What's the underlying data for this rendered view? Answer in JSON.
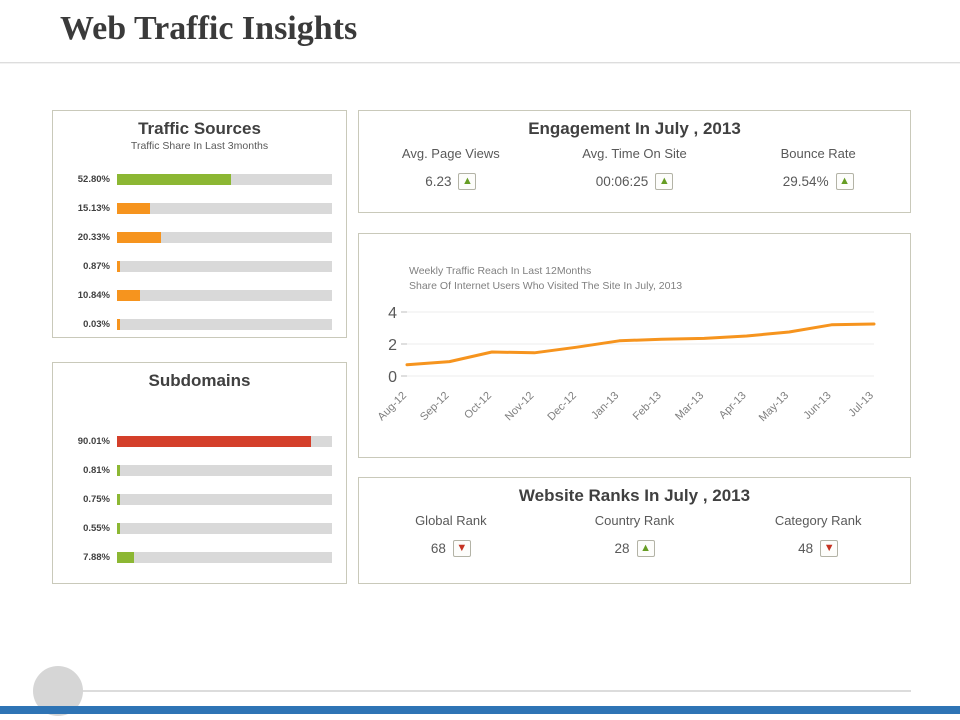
{
  "page": {
    "title": "Web Traffic Insights"
  },
  "colors": {
    "green": "#8cb733",
    "orange": "#f6941e",
    "red": "#d43f2a",
    "track_gray": "#d9d9d9",
    "up_arrow": "#669d23",
    "down_arrow": "#c53322",
    "footer_bar": "#2e74b5"
  },
  "panels": {
    "traffic_sources": {
      "title": "Traffic Sources",
      "subtitle": "Traffic Share In Last 3months"
    },
    "subdomains": {
      "title": "Subdomains"
    },
    "engagement": {
      "title": "Engagement In July , 2013",
      "metrics": [
        {
          "label": "Avg. Page Views",
          "value": "6.23",
          "trend": "up"
        },
        {
          "label": "Avg. Time On Site",
          "value": "00:06:25",
          "trend": "up"
        },
        {
          "label": "Bounce Rate",
          "value": "29.54%",
          "trend": "up"
        }
      ]
    },
    "weekly_traffic": {
      "note_line1": "Weekly Traffic Reach In Last 12Months",
      "note_line2": "Share Of Internet Users Who Visited The Site In July, 2013"
    },
    "website_ranks": {
      "title": "Website Ranks In July , 2013",
      "metrics": [
        {
          "label": "Global Rank",
          "value": "68",
          "trend": "down"
        },
        {
          "label": "Country Rank",
          "value": "28",
          "trend": "up"
        },
        {
          "label": "Category Rank",
          "value": "48",
          "trend": "down"
        }
      ]
    }
  },
  "chart_data": [
    {
      "id": "traffic-sources",
      "type": "bar",
      "orientation": "horizontal",
      "title": "Traffic Sources",
      "subtitle": "Traffic Share In Last 3months",
      "categories": [
        "52.80%",
        "15.13%",
        "20.33%",
        "0.87%",
        "10.84%",
        "0.03%"
      ],
      "values": [
        52.8,
        15.13,
        20.33,
        0.87,
        10.84,
        0.03
      ],
      "bar_colors": [
        "#8cb733",
        "#f6941e",
        "#f6941e",
        "#f6941e",
        "#f6941e",
        "#f6941e"
      ],
      "track_color": "#d9d9d9",
      "xlim": [
        0,
        100
      ]
    },
    {
      "id": "subdomains",
      "type": "bar",
      "orientation": "horizontal",
      "title": "Subdomains",
      "categories": [
        "90.01%",
        "0.81%",
        "0.75%",
        "0.55%",
        "7.88%"
      ],
      "values": [
        90.01,
        0.81,
        0.75,
        0.55,
        7.88
      ],
      "bar_colors": [
        "#d43f2a",
        "#8cb733",
        "#8cb733",
        "#8cb733",
        "#8cb733"
      ],
      "track_color": "#d9d9d9",
      "xlim": [
        0,
        100
      ]
    },
    {
      "id": "weekly-traffic",
      "type": "line",
      "title": "Weekly Traffic Reach In Last 12Months",
      "subtitle": "Share Of Internet Users Who Visited The Site In July, 2013",
      "x": [
        "Aug-12",
        "Sep-12",
        "Oct-12",
        "Nov-12",
        "Dec-12",
        "Jan-13",
        "Feb-13",
        "Mar-13",
        "Apr-13",
        "May-13",
        "Jun-13",
        "Jul-13"
      ],
      "values": [
        0.7,
        0.9,
        1.5,
        1.45,
        1.8,
        2.2,
        2.3,
        2.35,
        2.5,
        2.75,
        3.2,
        3.25
      ],
      "yticks": [
        0,
        2,
        4
      ],
      "ylim": [
        0,
        4
      ],
      "line_color": "#f6941e",
      "grid": true,
      "legend": "none"
    }
  ]
}
